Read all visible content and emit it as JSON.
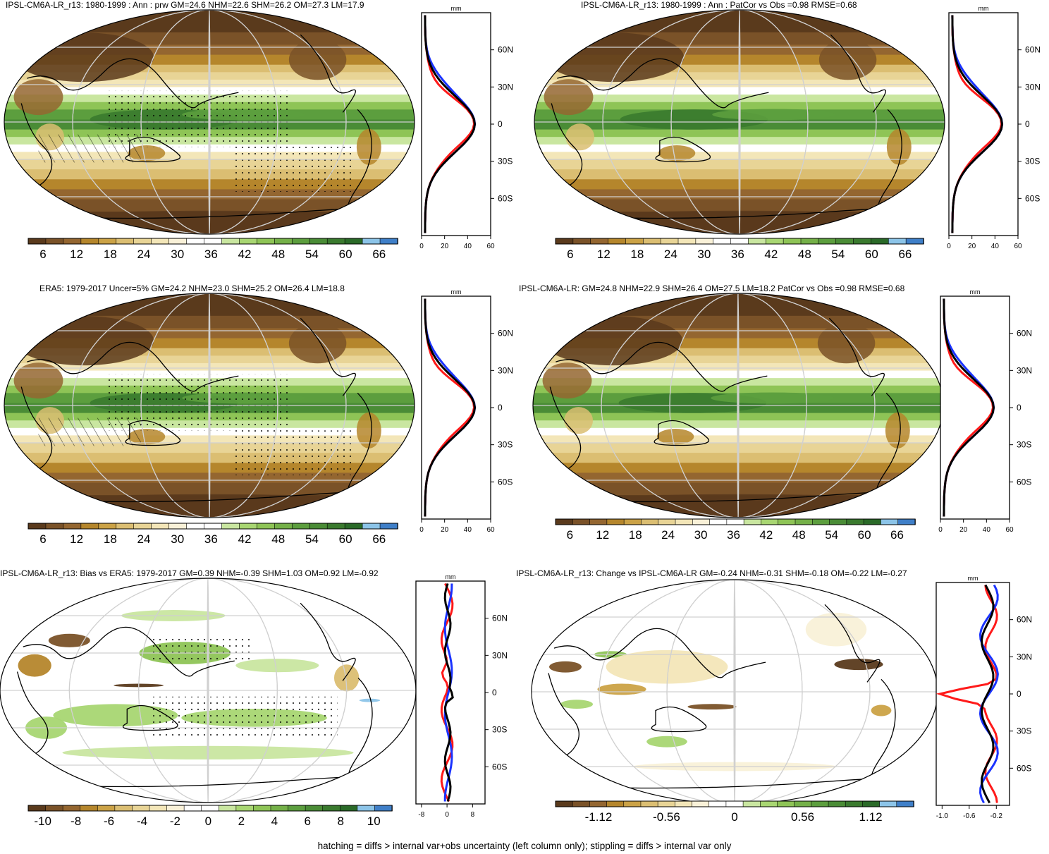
{
  "panels": [
    {
      "id": "p1",
      "title": "IPSL-CM6A-LR_r13: 1980-1999 : Ann : prw GM=24.6 NHM=22.6 SHM=26.2 OM=27.3 LM=17.9",
      "kind": "abs",
      "hatch": true,
      "cbar_labels": [
        "6",
        "12",
        "18",
        "24",
        "30",
        "36",
        "42",
        "48",
        "54",
        "60",
        "66"
      ],
      "profile_unit": "mm",
      "profile_xticks": [
        "0",
        "20",
        "40",
        "60"
      ],
      "profile_yticks": [
        "60N",
        "30N",
        "0",
        "30S",
        "60S"
      ]
    },
    {
      "id": "p2",
      "title": "IPSL-CM6A-LR_r13: 1980-1999 : Ann : PatCor vs Obs =0.98 RMSE=0.68",
      "kind": "abs",
      "hatch": false,
      "cbar_labels": [
        "6",
        "12",
        "18",
        "24",
        "30",
        "36",
        "42",
        "48",
        "54",
        "60",
        "66"
      ],
      "profile_unit": "mm",
      "profile_xticks": [
        "0",
        "20",
        "40",
        "60"
      ],
      "profile_yticks": [
        "60N",
        "30N",
        "0",
        "30S",
        "60S"
      ]
    },
    {
      "id": "p3",
      "title": "ERA5: 1979-2017 Uncer=5% GM=24.2 NHM=23.0 SHM=25.2 OM=26.4 LM=18.8",
      "kind": "abs",
      "hatch": true,
      "cbar_labels": [
        "6",
        "12",
        "18",
        "24",
        "30",
        "36",
        "42",
        "48",
        "54",
        "60",
        "66"
      ],
      "profile_unit": "mm",
      "profile_xticks": [
        "0",
        "20",
        "40",
        "60"
      ],
      "profile_yticks": [
        "60N",
        "30N",
        "0",
        "30S",
        "60S"
      ]
    },
    {
      "id": "p4",
      "title": "IPSL-CM6A-LR: GM=24.8 NHM=22.9 SHM=26.4 OM=27.5 LM=18.2 PatCor vs Obs =0.98 RMSE=0.68",
      "kind": "abs",
      "hatch": false,
      "cbar_labels": [
        "6",
        "12",
        "18",
        "24",
        "30",
        "36",
        "42",
        "48",
        "54",
        "60",
        "66"
      ],
      "profile_unit": "mm",
      "profile_xticks": [
        "0",
        "20",
        "40",
        "60"
      ],
      "profile_yticks": [
        "60N",
        "30N",
        "0",
        "30S",
        "60S"
      ]
    },
    {
      "id": "p5",
      "title": "IPSL-CM6A-LR_r13: Bias vs ERA5: 1979-2017 GM=0.39 NHM=-0.39 SHM=1.03 OM=0.92 LM=-0.92",
      "kind": "bias",
      "hatch": true,
      "cbar_labels": [
        "-10",
        "-8",
        "-6",
        "-4",
        "-2",
        "0",
        "2",
        "4",
        "6",
        "8",
        "10"
      ],
      "profile_unit": "mm",
      "profile_xticks": [
        "-8",
        "0",
        "8"
      ],
      "profile_yticks": [
        "60N",
        "30N",
        "0",
        "30S",
        "60S"
      ]
    },
    {
      "id": "p6",
      "title": "IPSL-CM6A-LR_r13: Change vs IPSL-CM6A-LR GM=-0.24 NHM=-0.31 SHM=-0.18 OM=-0.22 LM=-0.27",
      "kind": "change",
      "hatch": false,
      "cbar_labels": [
        "-1.12",
        "-0.56",
        "0",
        "0.56",
        "1.12"
      ],
      "profile_unit": "mm",
      "profile_xticks": [
        "-1.0",
        "-0.6",
        "-0.2"
      ],
      "profile_yticks": [
        "60N",
        "30N",
        "0",
        "30S",
        "60S"
      ]
    }
  ],
  "colors": {
    "abs_scale": [
      "#5a3a1c",
      "#7a5228",
      "#946630",
      "#b5862c",
      "#cba246",
      "#dbbe72",
      "#e8d496",
      "#f3e6b8",
      "#f9f1d8",
      "#ffffff",
      "#ffffff",
      "#c9e6a0",
      "#a8d672",
      "#8ec456",
      "#74b048",
      "#5c9e3e",
      "#4a8c36",
      "#3a7a2e",
      "#2a6a28",
      "#8cc4e8",
      "#3f7fc8"
    ],
    "diff_scale": [
      "#5a3a1c",
      "#7a5228",
      "#946630",
      "#b5862c",
      "#cba246",
      "#dbbe72",
      "#e8d496",
      "#f3e6b8",
      "#f9f1d8",
      "#ffffff",
      "#ffffff",
      "#c9e6a0",
      "#a8d672",
      "#8ec456",
      "#74b048",
      "#5c9e3e",
      "#4a8c36",
      "#3a7a2e",
      "#2a6a28",
      "#8cc4e8",
      "#3f7fc8"
    ],
    "profile_model": "#000000",
    "profile_obs": "#ff1a1a",
    "profile_ref": "#1a33ff"
  },
  "footer": "hatching = diffs > internal var+obs uncertainty (left column only); stippling = diffs > internal var only"
}
